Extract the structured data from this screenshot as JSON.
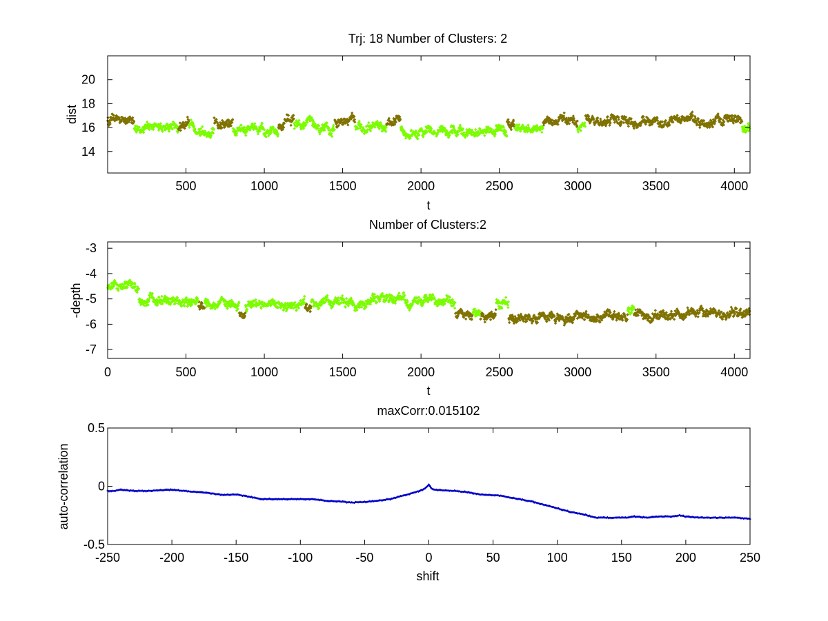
{
  "colors": {
    "cluster1": "#7cfc00",
    "cluster2": "#7f7200",
    "line": "#0000c8",
    "axis": "#000000"
  },
  "chart_data": [
    {
      "type": "scatter",
      "title": "Trj: 18 Number of Clusters: 2",
      "xlabel": "t",
      "ylabel": "dist",
      "xlim": [
        0,
        4100
      ],
      "ylim": [
        12.2,
        22
      ],
      "xticks": [
        500,
        1000,
        1500,
        2000,
        2500,
        3000,
        3500,
        4000
      ],
      "xticklabels": [
        "500",
        "1000",
        "1500",
        "2000",
        "2500",
        "3000",
        "3500",
        "4000"
      ],
      "yticks": [
        14,
        16,
        18,
        20
      ],
      "yticklabels": [
        "14",
        "16",
        "18",
        "20"
      ],
      "n_points": 4100,
      "segments": [
        {
          "start": 0,
          "end": 170,
          "cluster": 2,
          "mean": 16.6
        },
        {
          "start": 170,
          "end": 450,
          "cluster": 1,
          "mean": 16.0
        },
        {
          "start": 450,
          "end": 520,
          "cluster": 2,
          "mean": 16.3
        },
        {
          "start": 520,
          "end": 680,
          "cluster": 1,
          "mean": 15.9
        },
        {
          "start": 680,
          "end": 800,
          "cluster": 2,
          "mean": 16.6
        },
        {
          "start": 800,
          "end": 1090,
          "cluster": 1,
          "mean": 15.7
        },
        {
          "start": 1090,
          "end": 1190,
          "cluster": 2,
          "mean": 16.7
        },
        {
          "start": 1190,
          "end": 1450,
          "cluster": 1,
          "mean": 16.0
        },
        {
          "start": 1450,
          "end": 1580,
          "cluster": 2,
          "mean": 16.6
        },
        {
          "start": 1580,
          "end": 1780,
          "cluster": 1,
          "mean": 16.0
        },
        {
          "start": 1780,
          "end": 1870,
          "cluster": 2,
          "mean": 16.4
        },
        {
          "start": 1870,
          "end": 2550,
          "cluster": 1,
          "mean": 15.6
        },
        {
          "start": 2550,
          "end": 2600,
          "cluster": 2,
          "mean": 16.3
        },
        {
          "start": 2600,
          "end": 2780,
          "cluster": 1,
          "mean": 16.0
        },
        {
          "start": 2780,
          "end": 3000,
          "cluster": 2,
          "mean": 16.5
        },
        {
          "start": 3000,
          "end": 3050,
          "cluster": 1,
          "mean": 16.0
        },
        {
          "start": 3050,
          "end": 4050,
          "cluster": 2,
          "mean": 16.6
        },
        {
          "start": 4050,
          "end": 4100,
          "cluster": 1,
          "mean": 16.1
        }
      ]
    },
    {
      "type": "scatter",
      "title": "Number of Clusters:2",
      "xlabel": "t",
      "ylabel": "-depth",
      "xlim": [
        0,
        4100
      ],
      "ylim": [
        -7.35,
        -2.75
      ],
      "xticks": [
        0,
        500,
        1000,
        1500,
        2000,
        2500,
        3000,
        3500,
        4000
      ],
      "xticklabels": [
        "0",
        "500",
        "1000",
        "1500",
        "2000",
        "2500",
        "3000",
        "3500",
        "4000"
      ],
      "yticks": [
        -7,
        -6,
        -5,
        -4,
        -3
      ],
      "yticklabels": [
        "-7",
        "-6",
        "-5",
        "-4",
        "-3"
      ],
      "n_points": 4100,
      "segments": [
        {
          "start": 0,
          "end": 200,
          "cluster": 1,
          "mean": -4.6
        },
        {
          "start": 200,
          "end": 580,
          "cluster": 1,
          "mean": -5.1
        },
        {
          "start": 580,
          "end": 620,
          "cluster": 2,
          "mean": -5.3
        },
        {
          "start": 620,
          "end": 840,
          "cluster": 1,
          "mean": -5.2
        },
        {
          "start": 840,
          "end": 880,
          "cluster": 2,
          "mean": -5.5
        },
        {
          "start": 880,
          "end": 1260,
          "cluster": 1,
          "mean": -5.2
        },
        {
          "start": 1260,
          "end": 1300,
          "cluster": 2,
          "mean": -5.4
        },
        {
          "start": 1300,
          "end": 2220,
          "cluster": 1,
          "mean": -5.1
        },
        {
          "start": 2220,
          "end": 2330,
          "cluster": 2,
          "mean": -5.5
        },
        {
          "start": 2330,
          "end": 2380,
          "cluster": 1,
          "mean": -5.3
        },
        {
          "start": 2380,
          "end": 2480,
          "cluster": 2,
          "mean": -5.6
        },
        {
          "start": 2480,
          "end": 2560,
          "cluster": 1,
          "mean": -5.2
        },
        {
          "start": 2560,
          "end": 3320,
          "cluster": 2,
          "mean": -5.7
        },
        {
          "start": 3320,
          "end": 3360,
          "cluster": 1,
          "mean": -5.4
        },
        {
          "start": 3360,
          "end": 4100,
          "cluster": 2,
          "mean": -5.6
        }
      ]
    },
    {
      "type": "line",
      "title": "maxCorr:0.015102",
      "xlabel": "shift",
      "ylabel": "auto-correlation",
      "xlim": [
        -250,
        250
      ],
      "ylim": [
        -0.5,
        0.5
      ],
      "xticks": [
        -250,
        -200,
        -150,
        -100,
        -50,
        0,
        50,
        100,
        150,
        200,
        250
      ],
      "xticklabels": [
        "-250",
        "-200",
        "-150",
        "-100",
        "-50",
        "0",
        "50",
        "100",
        "150",
        "200",
        "250"
      ],
      "yticks": [
        -0.5,
        0,
        0.5
      ],
      "yticklabels": [
        "-0.5",
        "0",
        "0.5"
      ],
      "x": [
        -250,
        -245,
        -240,
        -230,
        -220,
        -210,
        -200,
        -190,
        -180,
        -170,
        -160,
        -150,
        -140,
        -130,
        -120,
        -110,
        -100,
        -90,
        -80,
        -70,
        -60,
        -50,
        -40,
        -30,
        -20,
        -10,
        -5,
        -2,
        0,
        2,
        5,
        10,
        20,
        30,
        40,
        47,
        55,
        60,
        70,
        80,
        90,
        100,
        110,
        120,
        130,
        140,
        150,
        155,
        160,
        170,
        180,
        190,
        195,
        200,
        210,
        220,
        230,
        240,
        250
      ],
      "y": [
        -0.04,
        -0.04,
        -0.03,
        -0.04,
        -0.04,
        -0.035,
        -0.03,
        -0.04,
        -0.05,
        -0.06,
        -0.075,
        -0.07,
        -0.09,
        -0.11,
        -0.11,
        -0.11,
        -0.11,
        -0.11,
        -0.125,
        -0.13,
        -0.14,
        -0.135,
        -0.125,
        -0.11,
        -0.08,
        -0.05,
        -0.03,
        -0.01,
        0.015,
        -0.02,
        -0.03,
        -0.035,
        -0.04,
        -0.05,
        -0.07,
        -0.075,
        -0.08,
        -0.09,
        -0.11,
        -0.13,
        -0.16,
        -0.19,
        -0.22,
        -0.24,
        -0.27,
        -0.27,
        -0.27,
        -0.27,
        -0.26,
        -0.27,
        -0.26,
        -0.26,
        -0.25,
        -0.26,
        -0.27,
        -0.27,
        -0.27,
        -0.27,
        -0.28
      ]
    }
  ]
}
